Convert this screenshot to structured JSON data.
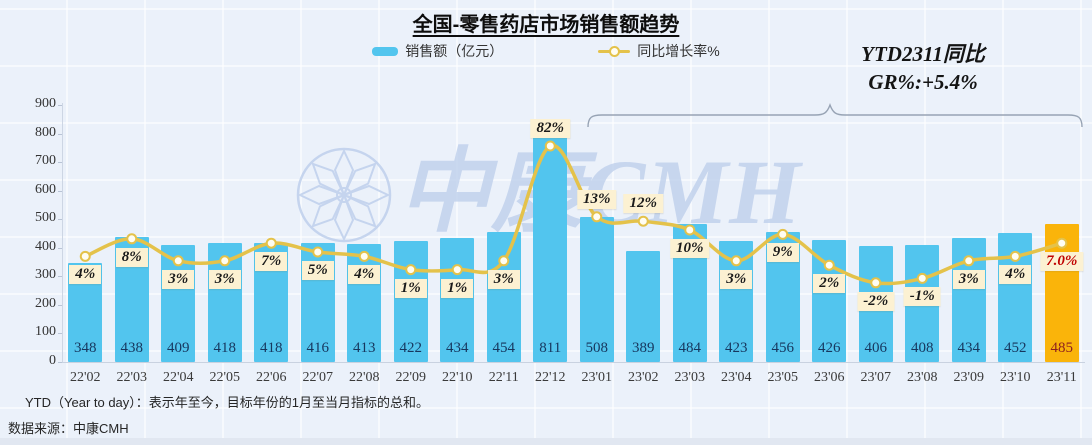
{
  "title": "全国-零售药店市场销售额趋势",
  "legend": {
    "sales_label": "销售额（亿元）",
    "growth_label": "同比增长率%"
  },
  "annotation": {
    "line1": "YTD2311同比",
    "line2": "GR%:+5.4%"
  },
  "watermark": {
    "text": "中康CMH"
  },
  "footnote": "YTD（Year to day）：表示年至今，目标年份的1月至当月指标的总和。",
  "source": "数据来源：中康CMH",
  "colors": {
    "bar": "#52C5EE",
    "bar_highlight": "#FAB40A",
    "line": "#E4C24A",
    "marker_fill": "#FFFDF2",
    "pct_box_bg": "#FCF1D2",
    "pct_text": "#1a1a1a",
    "pct_text_highlight": "#C00000",
    "bar_value_text": "#17375E",
    "bar_value_text_highlight": "#8E1F1F",
    "watermark": "#BFD0EC",
    "brace": "#97A3B4"
  },
  "chart_data": {
    "type": "bar",
    "title": "全国-零售药店市场销售额趋势",
    "categories": [
      "22'02",
      "22'03",
      "22'04",
      "22'05",
      "22'06",
      "22'07",
      "22'08",
      "22'09",
      "22'10",
      "22'11",
      "22'12",
      "23'01",
      "23'02",
      "23'03",
      "23'04",
      "23'05",
      "23'06",
      "23'07",
      "23'08",
      "23'09",
      "23'10",
      "23'11"
    ],
    "series": [
      {
        "name": "销售额（亿元）",
        "type": "bar",
        "values": [
          348,
          438,
          409,
          418,
          418,
          416,
          413,
          422,
          434,
          454,
          811,
          508,
          389,
          484,
          423,
          456,
          426,
          406,
          408,
          434,
          452,
          485
        ]
      },
      {
        "name": "同比增长率%",
        "type": "line",
        "values": [
          4,
          8,
          3,
          3,
          7,
          5,
          4,
          1,
          1,
          3,
          82,
          13,
          12,
          10,
          3,
          9,
          2,
          -2,
          -1,
          3,
          4,
          7
        ],
        "labels": [
          "4%",
          "8%",
          "3%",
          "3%",
          "7%",
          "5%",
          "4%",
          "1%",
          "1%",
          "3%",
          "82%",
          "13%",
          "12%",
          "10%",
          "3%",
          "9%",
          "2%",
          "-2%",
          "-1%",
          "3%",
          "4%",
          "7.0%"
        ]
      }
    ],
    "highlight_category": "23'11",
    "y_ticks": [
      0,
      100,
      200,
      300,
      400,
      500,
      600,
      700,
      800,
      900
    ],
    "ylim": [
      0,
      900
    ],
    "xlabel": "",
    "ylabel": "",
    "legend_position": "top",
    "grid": false,
    "annotation_bracket_range": [
      "23'01",
      "23'11"
    ]
  }
}
